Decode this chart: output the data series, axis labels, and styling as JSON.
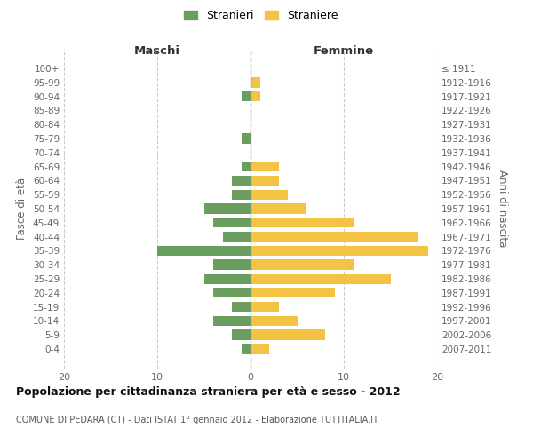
{
  "age_groups": [
    "100+",
    "95-99",
    "90-94",
    "85-89",
    "80-84",
    "75-79",
    "70-74",
    "65-69",
    "60-64",
    "55-59",
    "50-54",
    "45-49",
    "40-44",
    "35-39",
    "30-34",
    "25-29",
    "20-24",
    "15-19",
    "10-14",
    "5-9",
    "0-4"
  ],
  "birth_years": [
    "≤ 1911",
    "1912-1916",
    "1917-1921",
    "1922-1926",
    "1927-1931",
    "1932-1936",
    "1937-1941",
    "1942-1946",
    "1947-1951",
    "1952-1956",
    "1957-1961",
    "1962-1966",
    "1967-1971",
    "1972-1976",
    "1977-1981",
    "1982-1986",
    "1987-1991",
    "1992-1996",
    "1997-2001",
    "2002-2006",
    "2007-2011"
  ],
  "maschi": [
    0,
    0,
    1,
    0,
    0,
    1,
    0,
    1,
    2,
    2,
    5,
    4,
    3,
    10,
    4,
    5,
    4,
    2,
    4,
    2,
    1
  ],
  "femmine": [
    0,
    1,
    1,
    0,
    0,
    0,
    0,
    3,
    3,
    4,
    6,
    11,
    18,
    19,
    11,
    15,
    9,
    3,
    5,
    8,
    2
  ],
  "maschi_color": "#6a9e5e",
  "femmine_color": "#f5c343",
  "background_color": "#ffffff",
  "grid_color": "#cccccc",
  "title": "Popolazione per cittadinanza straniera per età e sesso - 2012",
  "subtitle": "COMUNE DI PEDARA (CT) - Dati ISTAT 1° gennaio 2012 - Elaborazione TUTTITALIA.IT",
  "xlabel_left": "Maschi",
  "xlabel_right": "Femmine",
  "ylabel_left": "Fasce di età",
  "ylabel_right": "Anni di nascita",
  "legend_maschi": "Stranieri",
  "legend_femmine": "Straniere",
  "xlim": 20,
  "bar_height": 0.72
}
